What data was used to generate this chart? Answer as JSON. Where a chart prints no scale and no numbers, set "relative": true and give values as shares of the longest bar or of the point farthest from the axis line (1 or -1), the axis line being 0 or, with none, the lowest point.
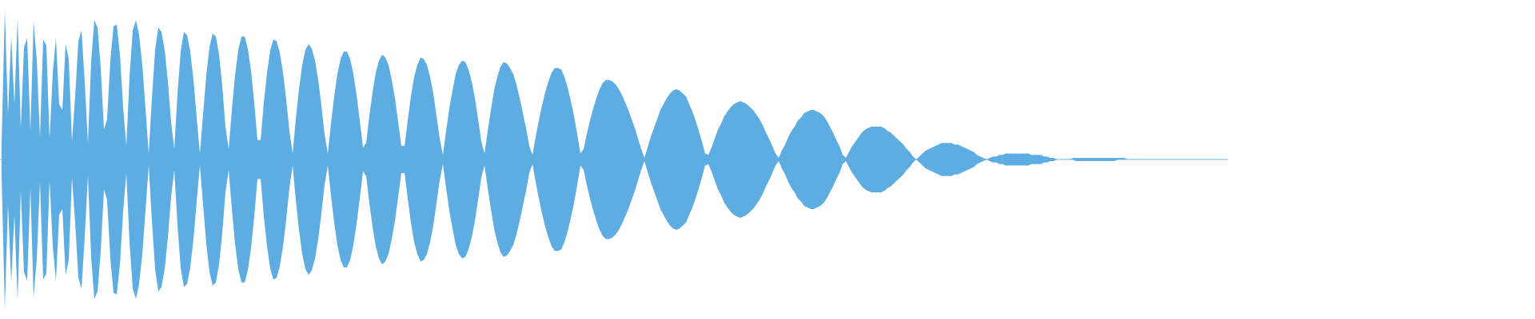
{
  "chart_data": {
    "type": "area",
    "relative": true,
    "categories": [
      null,
      null,
      null,
      null,
      null,
      null,
      null,
      null,
      null,
      null,
      null,
      null,
      null,
      null,
      null,
      null,
      null,
      null,
      null,
      null,
      null,
      null,
      null,
      null,
      null,
      null,
      null,
      null,
      null,
      null,
      null,
      null,
      null,
      null,
      null,
      null,
      null,
      null,
      null,
      null,
      null,
      null,
      null,
      null,
      null,
      null,
      null,
      null,
      null,
      null,
      null,
      null,
      null,
      null,
      null,
      null,
      null,
      null,
      null,
      null,
      null,
      null,
      null,
      null,
      null,
      null,
      null,
      null,
      null,
      null,
      null,
      null,
      null,
      null,
      null,
      null,
      null,
      null,
      null,
      null,
      null,
      null,
      null,
      null,
      null,
      null,
      null,
      null,
      null,
      null,
      null,
      null,
      null,
      null,
      null,
      null,
      null,
      null,
      null,
      null,
      null,
      null,
      null,
      null,
      null,
      null,
      null,
      null,
      null,
      null,
      null,
      null,
      null,
      null,
      null,
      null,
      null,
      null,
      null,
      null,
      null,
      null,
      null,
      null,
      null,
      null,
      null,
      null,
      null,
      null,
      null,
      null,
      null,
      null,
      null,
      null,
      null,
      null,
      null,
      null,
      null,
      null,
      null,
      null,
      null,
      null,
      null,
      null,
      null,
      null,
      null,
      null,
      null,
      null,
      null,
      null,
      null,
      null,
      null,
      null,
      null,
      null,
      null,
      null,
      null,
      null,
      null,
      null,
      null,
      null,
      null,
      null,
      null,
      null,
      null,
      null,
      null,
      null,
      null,
      null,
      null,
      null,
      null,
      null,
      null,
      null,
      null,
      null,
      null,
      null,
      null,
      null,
      null,
      null,
      null,
      null,
      null,
      null,
      null,
      null,
      null,
      null,
      null,
      null,
      null,
      null,
      null,
      null,
      null,
      null,
      null,
      null,
      null,
      null,
      null,
      null,
      null,
      null,
      null,
      null,
      null,
      null,
      null,
      null,
      null,
      null,
      null,
      null,
      null,
      null,
      null,
      null,
      null,
      null,
      null,
      null,
      null,
      null,
      null,
      null,
      null,
      null,
      null,
      null,
      null,
      null,
      null,
      null,
      null,
      null,
      null,
      null,
      null,
      null,
      null,
      null,
      null,
      null,
      null,
      null,
      null,
      null,
      null,
      null,
      null,
      null,
      null,
      null,
      null,
      null,
      null,
      null,
      null,
      null,
      null,
      null,
      null,
      null,
      null,
      null,
      null,
      null,
      null,
      null,
      null,
      null,
      null,
      null,
      null,
      null,
      null,
      null,
      null,
      null,
      null,
      null,
      null,
      null,
      null,
      null,
      null,
      null,
      null,
      null,
      null,
      null,
      null,
      null,
      null,
      null,
      null,
      null,
      null,
      null,
      null,
      null,
      null,
      null,
      null,
      null,
      null,
      null,
      null,
      null,
      null,
      null,
      null,
      null,
      null,
      null,
      null,
      null,
      null,
      null,
      null,
      null,
      null,
      null,
      null,
      null,
      null,
      null,
      null,
      null,
      null,
      null,
      null,
      null,
      null,
      null,
      null,
      null,
      null,
      null,
      null,
      null,
      null,
      null,
      null,
      null,
      null,
      null,
      null,
      null,
      null,
      null,
      null,
      null,
      null,
      null,
      null,
      null,
      null,
      null,
      null,
      null,
      null,
      null,
      null,
      null,
      null,
      null,
      null,
      null
    ],
    "ref_lines": [
      {
        "axis": "y",
        "value": 0,
        "color": "#5dade2"
      }
    ],
    "series": [
      {
        "color": "#5dade2",
        "values": [
          0.1,
          1,
          0.3,
          0.82,
          0.37,
          0.94,
          0.21,
          0.75,
          0.81,
          0.19,
          0.92,
          0.66,
          0.15,
          0.8,
          0.76,
          0.14,
          0.58,
          0.81,
          0.37,
          0.33,
          0.77,
          0.67,
          0.12,
          0.42,
          0.79,
          0.86,
          0.51,
          0.11,
          0.65,
          0.93,
          0.88,
          0.61,
          0.2,
          0.27,
          0.66,
          0.89,
          0.9,
          0.7,
          0.35,
          0.09,
          0.55,
          0.86,
          0.93,
          0.83,
          0.63,
          0.34,
          0.04,
          0.41,
          0.73,
          0.88,
          0.85,
          0.73,
          0.52,
          0.25,
          0.07,
          0.44,
          0.72,
          0.85,
          0.83,
          0.72,
          0.53,
          0.28,
          0.04,
          0.3,
          0.56,
          0.75,
          0.84,
          0.82,
          0.7,
          0.49,
          0.22,
          0.07,
          0.33,
          0.56,
          0.73,
          0.82,
          0.82,
          0.74,
          0.59,
          0.38,
          0.13,
          0.13,
          0.38,
          0.58,
          0.73,
          0.8,
          0.79,
          0.71,
          0.58,
          0.4,
          0.19,
          0.04,
          0.27,
          0.47,
          0.63,
          0.73,
          0.77,
          0.74,
          0.66,
          0.53,
          0.36,
          0.17,
          0.04,
          0.24,
          0.42,
          0.57,
          0.67,
          0.72,
          0.72,
          0.67,
          0.57,
          0.43,
          0.26,
          0.08,
          0.11,
          0.29,
          0.45,
          0.58,
          0.66,
          0.7,
          0.68,
          0.63,
          0.53,
          0.41,
          0.25,
          0.09,
          0.09,
          0.26,
          0.42,
          0.55,
          0.63,
          0.68,
          0.67,
          0.63,
          0.55,
          0.44,
          0.29,
          0.14,
          0.03,
          0.19,
          0.34,
          0.46,
          0.57,
          0.63,
          0.66,
          0.65,
          0.6,
          0.52,
          0.41,
          0.27,
          0.12,
          0.04,
          0.19,
          0.33,
          0.46,
          0.55,
          0.62,
          0.65,
          0.64,
          0.61,
          0.57,
          0.5,
          0.41,
          0.31,
          0.21,
          0.09,
          0.03,
          0.15,
          0.26,
          0.36,
          0.45,
          0.52,
          0.58,
          0.61,
          0.61,
          0.6,
          0.55,
          0.48,
          0.39,
          0.29,
          0.17,
          0.04,
          0.07,
          0.17,
          0.26,
          0.34,
          0.41,
          0.47,
          0.51,
          0.53,
          0.53,
          0.52,
          0.5,
          0.47,
          0.43,
          0.38,
          0.33,
          0.27,
          0.21,
          0.14,
          0.07,
          0.01,
          0.08,
          0.15,
          0.21,
          0.27,
          0.33,
          0.37,
          0.41,
          0.44,
          0.46,
          0.47,
          0.46,
          0.44,
          0.42,
          0.37,
          0.32,
          0.26,
          0.19,
          0.12,
          0.04,
          0.03,
          0.08,
          0.14,
          0.2,
          0.24,
          0.29,
          0.32,
          0.35,
          0.37,
          0.38,
          0.39,
          0.38,
          0.37,
          0.35,
          0.33,
          0.3,
          0.27,
          0.23,
          0.18,
          0.14,
          0.09,
          0.04,
          0.01,
          0.06,
          0.1,
          0.15,
          0.19,
          0.22,
          0.26,
          0.28,
          0.31,
          0.32,
          0.33,
          0.33,
          0.32,
          0.31,
          0.29,
          0.26,
          0.22,
          0.18,
          0.13,
          0.09,
          0.03,
          0.01,
          0.05,
          0.09,
          0.12,
          0.15,
          0.18,
          0.2,
          0.21,
          0.22,
          0.22,
          0.22,
          0.22,
          0.21,
          0.19,
          0.18,
          0.16,
          0.14,
          0.12,
          0.1,
          0.07,
          0.05,
          0.02,
          0,
          0.02,
          0.04,
          0.06,
          0.07,
          0.08,
          0.09,
          0.1,
          0.11,
          0.11,
          0.11,
          0.11,
          0.1,
          0.1,
          0.09,
          0.08,
          0.07,
          0.06,
          0.05,
          0.03,
          0.02,
          0.01,
          0,
          0.01,
          0.02,
          0.02,
          0.03,
          0.03,
          0.04,
          0.04,
          0.04,
          0.04,
          0.04,
          0.04,
          0.04,
          0.04,
          0.03,
          0.03,
          0.03,
          0.03,
          0.02,
          0.02,
          0.01,
          0.01,
          0,
          0,
          0,
          0,
          0,
          0.01,
          0.01,
          0.01,
          0.01,
          0.01,
          0.01,
          0.01,
          0.01,
          0.01,
          0.01,
          0.01,
          0.01,
          0.01,
          0.01,
          0.01,
          0.01,
          0.01,
          0,
          0,
          0,
          0,
          0,
          0,
          0,
          null,
          null,
          null,
          null,
          0,
          0,
          0,
          0,
          0,
          0,
          0,
          0,
          0,
          0,
          0,
          0,
          0,
          0,
          0,
          0,
          0,
          0,
          0,
          0,
          0
        ]
      },
      {
        "color": "#5dade2",
        "values": [
          -0.1,
          -1,
          -0.3,
          -0.82,
          -0.37,
          -0.94,
          -0.21,
          -0.75,
          -0.81,
          -0.19,
          -0.92,
          -0.66,
          -0.15,
          -0.8,
          -0.76,
          -0.14,
          -0.58,
          -0.81,
          -0.37,
          -0.33,
          -0.77,
          -0.67,
          -0.12,
          -0.42,
          -0.79,
          -0.86,
          -0.51,
          -0.11,
          -0.65,
          -0.93,
          -0.88,
          -0.61,
          -0.2,
          -0.27,
          -0.66,
          -0.89,
          -0.9,
          -0.7,
          -0.35,
          -0.09,
          -0.55,
          -0.86,
          -0.93,
          -0.83,
          -0.63,
          -0.34,
          -0.04,
          -0.41,
          -0.73,
          -0.88,
          -0.85,
          -0.73,
          -0.52,
          -0.25,
          -0.07,
          -0.44,
          -0.72,
          -0.85,
          -0.83,
          -0.72,
          -0.53,
          -0.28,
          -0.04,
          -0.3,
          -0.56,
          -0.75,
          -0.84,
          -0.82,
          -0.7,
          -0.49,
          -0.22,
          -0.07,
          -0.33,
          -0.56,
          -0.73,
          -0.82,
          -0.82,
          -0.74,
          -0.59,
          -0.38,
          -0.13,
          -0.13,
          -0.38,
          -0.58,
          -0.73,
          -0.8,
          -0.79,
          -0.71,
          -0.58,
          -0.4,
          -0.19,
          -0.04,
          -0.27,
          -0.47,
          -0.63,
          -0.73,
          -0.77,
          -0.74,
          -0.66,
          -0.53,
          -0.36,
          -0.17,
          -0.04,
          -0.24,
          -0.42,
          -0.57,
          -0.67,
          -0.72,
          -0.72,
          -0.67,
          -0.57,
          -0.43,
          -0.26,
          -0.08,
          -0.11,
          -0.29,
          -0.45,
          -0.58,
          -0.66,
          -0.7,
          -0.68,
          -0.63,
          -0.53,
          -0.41,
          -0.25,
          -0.09,
          -0.09,
          -0.26,
          -0.42,
          -0.55,
          -0.63,
          -0.68,
          -0.67,
          -0.63,
          -0.55,
          -0.44,
          -0.29,
          -0.14,
          -0.03,
          -0.19,
          -0.34,
          -0.46,
          -0.57,
          -0.63,
          -0.66,
          -0.65,
          -0.6,
          -0.52,
          -0.41,
          -0.27,
          -0.12,
          -0.04,
          -0.19,
          -0.33,
          -0.46,
          -0.55,
          -0.62,
          -0.65,
          -0.64,
          -0.61,
          -0.57,
          -0.5,
          -0.41,
          -0.31,
          -0.21,
          -0.09,
          -0.03,
          -0.15,
          -0.26,
          -0.36,
          -0.45,
          -0.52,
          -0.58,
          -0.61,
          -0.61,
          -0.6,
          -0.55,
          -0.48,
          -0.39,
          -0.29,
          -0.17,
          -0.04,
          -0.07,
          -0.17,
          -0.26,
          -0.34,
          -0.41,
          -0.47,
          -0.51,
          -0.53,
          -0.53,
          -0.52,
          -0.5,
          -0.47,
          -0.43,
          -0.38,
          -0.33,
          -0.27,
          -0.21,
          -0.14,
          -0.07,
          -0.01,
          -0.08,
          -0.15,
          -0.21,
          -0.27,
          -0.33,
          -0.37,
          -0.41,
          -0.44,
          -0.46,
          -0.47,
          -0.46,
          -0.44,
          -0.42,
          -0.37,
          -0.32,
          -0.26,
          -0.19,
          -0.12,
          -0.04,
          -0.03,
          -0.08,
          -0.14,
          -0.2,
          -0.24,
          -0.29,
          -0.32,
          -0.35,
          -0.37,
          -0.38,
          -0.39,
          -0.38,
          -0.37,
          -0.35,
          -0.33,
          -0.3,
          -0.27,
          -0.23,
          -0.18,
          -0.14,
          -0.09,
          -0.04,
          -0.01,
          -0.06,
          -0.1,
          -0.15,
          -0.19,
          -0.22,
          -0.26,
          -0.28,
          -0.31,
          -0.32,
          -0.33,
          -0.33,
          -0.32,
          -0.31,
          -0.29,
          -0.26,
          -0.22,
          -0.18,
          -0.13,
          -0.09,
          -0.03,
          -0.01,
          -0.05,
          -0.09,
          -0.12,
          -0.15,
          -0.18,
          -0.2,
          -0.21,
          -0.22,
          -0.22,
          -0.22,
          -0.22,
          -0.21,
          -0.19,
          -0.18,
          -0.16,
          -0.14,
          -0.12,
          -0.1,
          -0.07,
          -0.05,
          -0.02,
          0,
          -0.02,
          -0.04,
          -0.06,
          -0.07,
          -0.08,
          -0.09,
          -0.1,
          -0.11,
          -0.11,
          -0.11,
          -0.11,
          -0.1,
          -0.1,
          -0.09,
          -0.08,
          -0.07,
          -0.06,
          -0.05,
          -0.03,
          -0.02,
          -0.01,
          0,
          -0.01,
          -0.02,
          -0.02,
          -0.03,
          -0.03,
          -0.04,
          -0.04,
          -0.04,
          -0.04,
          -0.04,
          -0.04,
          -0.04,
          -0.04,
          -0.03,
          -0.03,
          -0.03,
          -0.03,
          -0.02,
          -0.02,
          -0.01,
          -0.01,
          0,
          0,
          0,
          0,
          0,
          0,
          -0.01,
          -0.01,
          -0.01,
          -0.01,
          -0.01,
          -0.01,
          -0.01,
          -0.01,
          -0.01,
          -0.01,
          -0.01,
          -0.01,
          -0.01,
          0,
          0,
          0,
          0,
          0,
          0,
          0,
          0,
          0,
          0,
          null,
          null,
          null,
          null,
          0,
          0,
          0,
          0,
          0,
          0,
          0,
          0,
          0,
          0,
          0,
          0,
          0,
          0,
          0,
          0,
          0,
          0,
          0,
          0,
          0
        ]
      }
    ]
  }
}
